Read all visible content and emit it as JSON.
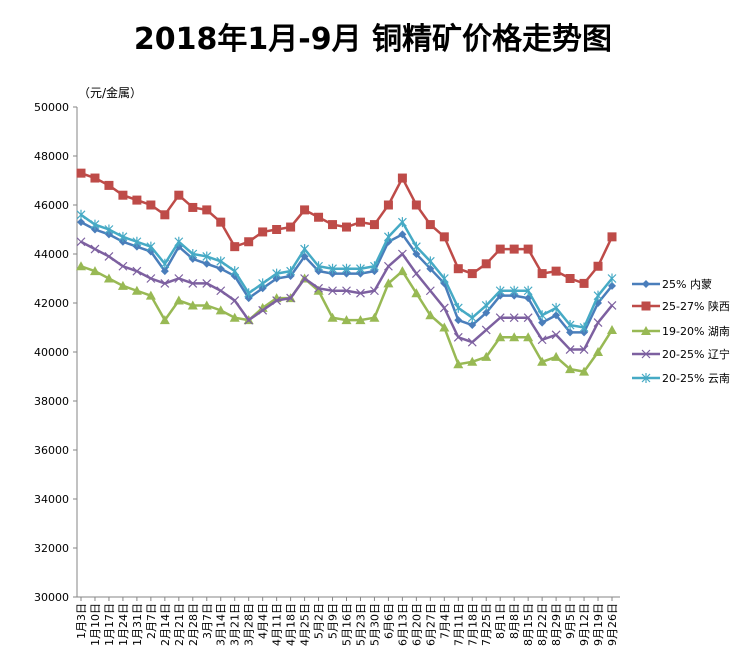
{
  "chart_data": {
    "type": "line",
    "title": "2018年1月-9月 铜精矿价格走势图",
    "ylabel": "（元/金属）",
    "xlabel": "",
    "ylim": [
      30000,
      50000
    ],
    "yticks": [
      30000,
      32000,
      34000,
      36000,
      38000,
      40000,
      42000,
      44000,
      46000,
      48000,
      50000
    ],
    "grid": false,
    "legend_position": "right",
    "categories": [
      "1月3日",
      "1月10日",
      "1月17日",
      "1月24日",
      "1月31日",
      "2月7日",
      "2月14日",
      "2月21日",
      "2月28日",
      "3月7日",
      "3月14日",
      "3月21日",
      "3月28日",
      "4月4日",
      "4月11日",
      "4月18日",
      "4月25日",
      "5月2日",
      "5月9日",
      "5月16日",
      "5月23日",
      "5月30日",
      "6月6日",
      "6月13日",
      "6月20日",
      "6月27日",
      "7月4日",
      "7月11日",
      "7月18日",
      "7月25日",
      "8月1日",
      "8月8日",
      "8月15日",
      "8月22日",
      "8月29日",
      "9月5日",
      "9月12日",
      "9月19日",
      "9月26日"
    ],
    "series": [
      {
        "name": "25% 内蒙",
        "color": "#4a7ebb",
        "marker": "diamond",
        "values": [
          45300,
          45000,
          44800,
          44500,
          44300,
          44100,
          43300,
          44300,
          43800,
          43600,
          43400,
          43100,
          42200,
          42600,
          43000,
          43100,
          43900,
          43300,
          43200,
          43200,
          43200,
          43300,
          44500,
          44800,
          44000,
          43400,
          42800,
          41300,
          41100,
          41600,
          42300,
          42300,
          42200,
          41200,
          41500,
          40800,
          40800,
          42000,
          42700
        ]
      },
      {
        "name": "25-27% 陕西",
        "color": "#be4b48",
        "marker": "square",
        "values": [
          47300,
          47100,
          46800,
          46400,
          46200,
          46000,
          45600,
          46400,
          45900,
          45800,
          45300,
          44300,
          44500,
          44900,
          45000,
          45100,
          45800,
          45500,
          45200,
          45100,
          45300,
          45200,
          46000,
          47100,
          46000,
          45200,
          44700,
          43400,
          43200,
          43600,
          44200,
          44200,
          44200,
          43200,
          43300,
          43000,
          42800,
          43500,
          44700
        ]
      },
      {
        "name": "19-20% 湖南",
        "color": "#98b954",
        "marker": "triangle",
        "values": [
          43500,
          43300,
          43000,
          42700,
          42500,
          42300,
          41300,
          42100,
          41900,
          41900,
          41700,
          41400,
          41300,
          41800,
          42200,
          42200,
          43000,
          42500,
          41400,
          41300,
          41300,
          41400,
          42800,
          43300,
          42400,
          41500,
          41000,
          39500,
          39600,
          39800,
          40600,
          40600,
          40600,
          39600,
          39800,
          39300,
          39200,
          40000,
          40900
        ]
      },
      {
        "name": "20-25% 辽宁",
        "color": "#7d60a0",
        "marker": "x",
        "values": [
          44500,
          44200,
          43900,
          43500,
          43300,
          43000,
          42800,
          43000,
          42800,
          42800,
          42500,
          42100,
          41300,
          41700,
          42100,
          42200,
          43000,
          42600,
          42500,
          42500,
          42400,
          42500,
          43500,
          44000,
          43200,
          42500,
          41800,
          40600,
          40400,
          40900,
          41400,
          41400,
          41400,
          40500,
          40700,
          40100,
          40100,
          41200,
          41900
        ]
      },
      {
        "name": "20-25% 云南",
        "color": "#46aac5",
        "marker": "star",
        "values": [
          45600,
          45200,
          45000,
          44700,
          44500,
          44300,
          43600,
          44500,
          44000,
          43900,
          43700,
          43300,
          42400,
          42800,
          43200,
          43300,
          44200,
          43500,
          43400,
          43400,
          43400,
          43500,
          44700,
          45300,
          44300,
          43700,
          43000,
          41800,
          41400,
          41900,
          42500,
          42500,
          42500,
          41500,
          41800,
          41100,
          41000,
          42300,
          43000
        ]
      }
    ]
  }
}
